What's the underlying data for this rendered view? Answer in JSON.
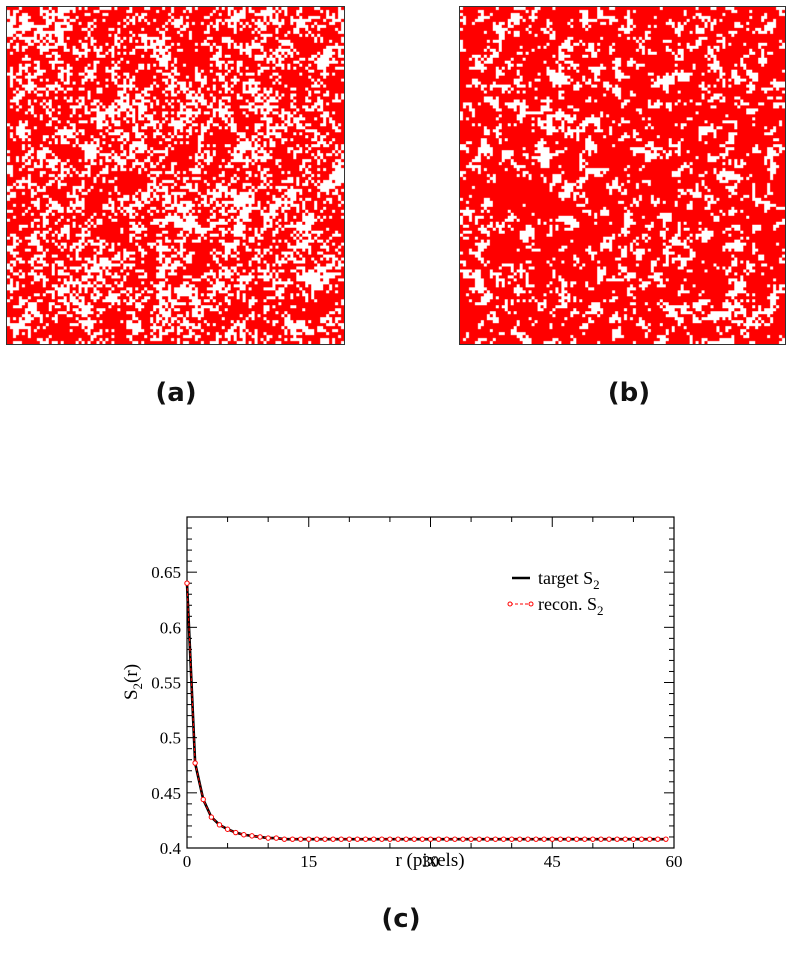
{
  "figure": {
    "panels": [
      {
        "label": "(a)",
        "kind": "microstructure",
        "fill_color": "#ff0000",
        "background_color": "#ffffff",
        "texture": "clustered"
      },
      {
        "label": "(b)",
        "kind": "microstructure",
        "fill_color": "#ff0000",
        "background_color": "#ffffff",
        "texture": "fine-grained"
      },
      {
        "label": "(c)",
        "kind": "plot"
      }
    ]
  },
  "chart_data": {
    "type": "line",
    "title": "",
    "xlabel": "r (pixels)",
    "ylabel": "S2(r)",
    "ylabel_main": "S",
    "ylabel_sub": "2",
    "ylabel_tail": "(r)",
    "xlim": [
      0,
      60
    ],
    "ylim": [
      0.4,
      0.7
    ],
    "xticks": [
      0,
      15,
      30,
      45,
      60
    ],
    "xtick_labels": [
      "0",
      "15",
      "30",
      "45",
      "60"
    ],
    "yticks": [
      0.4,
      0.45,
      0.5,
      0.55,
      0.6,
      0.65
    ],
    "ytick_labels": [
      "0.4",
      "0.45",
      "0.5",
      "0.55",
      "0.6",
      "0.65"
    ],
    "grid": false,
    "legend_position": "top-right",
    "x": [
      0,
      1,
      2,
      3,
      4,
      5,
      6,
      7,
      8,
      9,
      10,
      11,
      12,
      13,
      14,
      15,
      16,
      17,
      18,
      19,
      20,
      21,
      22,
      23,
      24,
      25,
      26,
      27,
      28,
      29,
      30,
      31,
      32,
      33,
      34,
      35,
      36,
      37,
      38,
      39,
      40,
      41,
      42,
      43,
      44,
      45,
      46,
      47,
      48,
      49,
      50,
      51,
      52,
      53,
      54,
      55,
      56,
      57,
      58,
      59
    ],
    "series": [
      {
        "name": "target S2",
        "legend_main": "target S",
        "legend_sub": "2",
        "style": "solid",
        "color": "#000000",
        "values": [
          0.64,
          0.477,
          0.444,
          0.428,
          0.421,
          0.417,
          0.414,
          0.412,
          0.411,
          0.41,
          0.409,
          0.409,
          0.408,
          0.408,
          0.408,
          0.408,
          0.408,
          0.408,
          0.408,
          0.408,
          0.408,
          0.408,
          0.408,
          0.408,
          0.408,
          0.408,
          0.408,
          0.408,
          0.408,
          0.408,
          0.408,
          0.408,
          0.408,
          0.408,
          0.408,
          0.408,
          0.408,
          0.408,
          0.408,
          0.408,
          0.408,
          0.408,
          0.408,
          0.408,
          0.408,
          0.408,
          0.408,
          0.408,
          0.408,
          0.408,
          0.408,
          0.408,
          0.408,
          0.408,
          0.408,
          0.408,
          0.408,
          0.408,
          0.408,
          0.408
        ]
      },
      {
        "name": "recon. S2",
        "legend_main": "recon. S",
        "legend_sub": "2",
        "style": "dashed-circles",
        "color": "#ff0000",
        "values": [
          0.64,
          0.477,
          0.444,
          0.428,
          0.421,
          0.417,
          0.414,
          0.412,
          0.411,
          0.41,
          0.409,
          0.409,
          0.408,
          0.408,
          0.408,
          0.408,
          0.408,
          0.408,
          0.408,
          0.408,
          0.408,
          0.408,
          0.408,
          0.408,
          0.408,
          0.408,
          0.408,
          0.408,
          0.408,
          0.408,
          0.408,
          0.408,
          0.408,
          0.408,
          0.408,
          0.408,
          0.408,
          0.408,
          0.408,
          0.408,
          0.408,
          0.408,
          0.408,
          0.408,
          0.408,
          0.408,
          0.408,
          0.408,
          0.408,
          0.408,
          0.408,
          0.408,
          0.408,
          0.408,
          0.408,
          0.408,
          0.408,
          0.408,
          0.408,
          0.408
        ]
      }
    ]
  }
}
